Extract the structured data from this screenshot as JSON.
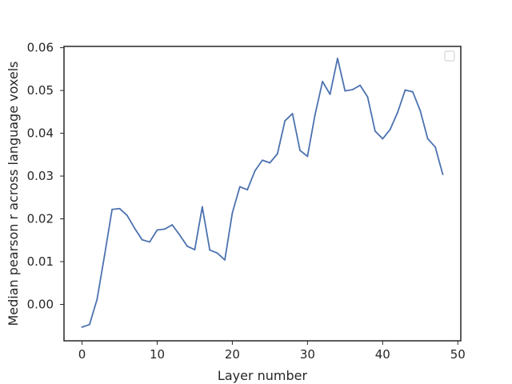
{
  "chart_data": {
    "type": "line",
    "title": "",
    "xlabel": "Layer number",
    "ylabel": "Median pearson r across language voxels",
    "xlim": [
      -2.4,
      50.4
    ],
    "ylim": [
      -0.0085,
      0.0603
    ],
    "xticks": [
      0,
      10,
      20,
      30,
      40,
      50
    ],
    "xtick_labels": [
      "0",
      "10",
      "20",
      "30",
      "40",
      "50"
    ],
    "yticks": [
      0.0,
      0.01,
      0.02,
      0.03,
      0.04,
      0.05,
      0.06
    ],
    "ytick_labels": [
      "0.00",
      "0.01",
      "0.02",
      "0.03",
      "0.04",
      "0.05",
      "0.06"
    ],
    "grid": false,
    "legend": {
      "placement": "top-right",
      "entries": []
    },
    "series": [
      {
        "color": "#4c72b0",
        "x": [
          0,
          1,
          2,
          3,
          4,
          5,
          6,
          7,
          8,
          9,
          10,
          11,
          12,
          13,
          14,
          15,
          16,
          17,
          18,
          19,
          20,
          21,
          22,
          23,
          24,
          25,
          26,
          27,
          28,
          29,
          30,
          31,
          32,
          33,
          34,
          35,
          36,
          37,
          38,
          39,
          40,
          41,
          42,
          43,
          44,
          45,
          46,
          47,
          48
        ],
        "values": [
          -0.0053,
          -0.0047,
          0.0012,
          0.0115,
          0.0222,
          0.0224,
          0.0208,
          0.0178,
          0.0151,
          0.0146,
          0.0174,
          0.0176,
          0.0186,
          0.0162,
          0.0136,
          0.0128,
          0.0228,
          0.0127,
          0.012,
          0.0104,
          0.0214,
          0.0275,
          0.0268,
          0.0312,
          0.0337,
          0.0331,
          0.0352,
          0.0429,
          0.0446,
          0.036,
          0.0346,
          0.0443,
          0.0521,
          0.0491,
          0.0575,
          0.0499,
          0.0502,
          0.0512,
          0.0485,
          0.0405,
          0.0387,
          0.0409,
          0.0449,
          0.0501,
          0.0497,
          0.0453,
          0.0387,
          0.0368,
          0.0304
        ]
      }
    ]
  }
}
